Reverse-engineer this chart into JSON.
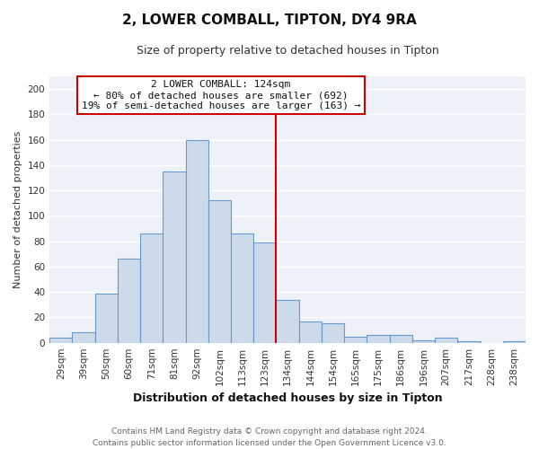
{
  "title": "2, LOWER COMBALL, TIPTON, DY4 9RA",
  "subtitle": "Size of property relative to detached houses in Tipton",
  "xlabel": "Distribution of detached houses by size in Tipton",
  "ylabel": "Number of detached properties",
  "bar_labels": [
    "29sqm",
    "39sqm",
    "50sqm",
    "60sqm",
    "71sqm",
    "81sqm",
    "92sqm",
    "102sqm",
    "113sqm",
    "123sqm",
    "134sqm",
    "144sqm",
    "154sqm",
    "165sqm",
    "175sqm",
    "186sqm",
    "196sqm",
    "207sqm",
    "217sqm",
    "228sqm",
    "238sqm"
  ],
  "bar_values": [
    4,
    8,
    39,
    66,
    86,
    135,
    160,
    112,
    86,
    79,
    34,
    17,
    15,
    5,
    6,
    6,
    2,
    4,
    1,
    0,
    1
  ],
  "bar_color": "#cddaea",
  "bar_edgecolor": "#6699cc",
  "vline_color": "#cc0000",
  "ylim": [
    0,
    210
  ],
  "yticks": [
    0,
    20,
    40,
    60,
    80,
    100,
    120,
    140,
    160,
    180,
    200
  ],
  "annotation_title": "2 LOWER COMBALL: 124sqm",
  "annotation_line1": "← 80% of detached houses are smaller (692)",
  "annotation_line2": "19% of semi-detached houses are larger (163) →",
  "annotation_box_edgecolor": "#cc0000",
  "footer_line1": "Contains HM Land Registry data © Crown copyright and database right 2024.",
  "footer_line2": "Contains public sector information licensed under the Open Government Licence v3.0.",
  "background_color": "#eef2f8",
  "grid_color": "#ffffff",
  "title_fontsize": 11,
  "subtitle_fontsize": 9,
  "xlabel_fontsize": 9,
  "ylabel_fontsize": 8,
  "tick_fontsize": 7.5,
  "annotation_fontsize": 8,
  "footer_fontsize": 6.5
}
